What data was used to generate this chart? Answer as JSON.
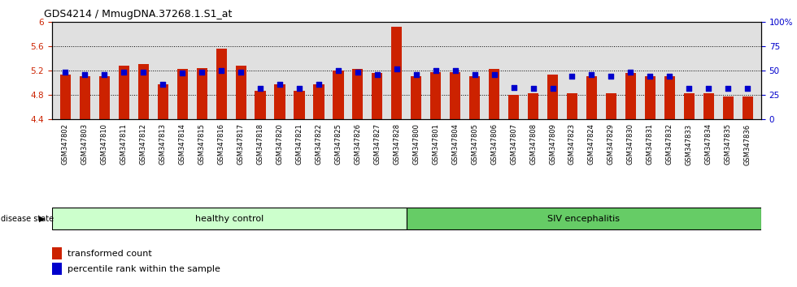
{
  "title": "GDS4214 / MmugDNA.37268.1.S1_at",
  "samples": [
    "GSM347802",
    "GSM347803",
    "GSM347810",
    "GSM347811",
    "GSM347812",
    "GSM347813",
    "GSM347814",
    "GSM347815",
    "GSM347816",
    "GSM347817",
    "GSM347818",
    "GSM347820",
    "GSM347821",
    "GSM347822",
    "GSM347825",
    "GSM347826",
    "GSM347827",
    "GSM347828",
    "GSM347800",
    "GSM347801",
    "GSM347804",
    "GSM347805",
    "GSM347806",
    "GSM347807",
    "GSM347808",
    "GSM347809",
    "GSM347823",
    "GSM347824",
    "GSM347829",
    "GSM347830",
    "GSM347831",
    "GSM347832",
    "GSM347833",
    "GSM347834",
    "GSM347835",
    "GSM347836"
  ],
  "red_values": [
    5.13,
    5.1,
    5.1,
    5.27,
    5.3,
    4.97,
    5.22,
    5.23,
    5.55,
    5.27,
    4.87,
    4.97,
    4.87,
    4.97,
    5.2,
    5.22,
    5.15,
    5.92,
    5.1,
    5.17,
    5.17,
    5.1,
    5.22,
    4.8,
    4.82,
    5.13,
    4.83,
    5.1,
    4.82,
    5.15,
    5.1,
    5.1,
    4.82,
    4.82,
    4.77,
    4.77
  ],
  "blue_values": [
    5.17,
    5.13,
    5.13,
    5.17,
    5.17,
    4.97,
    5.15,
    5.17,
    5.2,
    5.17,
    4.9,
    4.97,
    4.9,
    4.97,
    5.2,
    5.17,
    5.13,
    5.22,
    5.13,
    5.2,
    5.2,
    5.13,
    5.13,
    4.92,
    4.9,
    4.9,
    5.1,
    5.13,
    5.1,
    5.17,
    5.1,
    5.1,
    4.9,
    4.9,
    4.9,
    4.9
  ],
  "group1_count": 18,
  "group1_label": "healthy control",
  "group2_label": "SIV encephalitis",
  "group1_color": "#ccffcc",
  "group2_color": "#66cc66",
  "bar_color": "#cc2200",
  "dot_color": "#0000cc",
  "ymin": 4.4,
  "ymax": 6.0,
  "yticks": [
    4.4,
    4.8,
    5.2,
    5.6,
    6.0
  ],
  "ytick_labels": [
    "4.4",
    "4.8",
    "5.2",
    "5.6",
    "6"
  ],
  "right_yticks": [
    0,
    25,
    50,
    75,
    100
  ],
  "right_ytick_labels": [
    "0",
    "25",
    "50",
    "75",
    "100%"
  ],
  "left_axis_color": "#cc2200",
  "right_axis_color": "#0000cc",
  "disease_state_label": "disease state",
  "legend_red": "transformed count",
  "legend_blue": "percentile rank within the sample",
  "bg_color": "#e0e0e0",
  "bar_width": 0.55
}
